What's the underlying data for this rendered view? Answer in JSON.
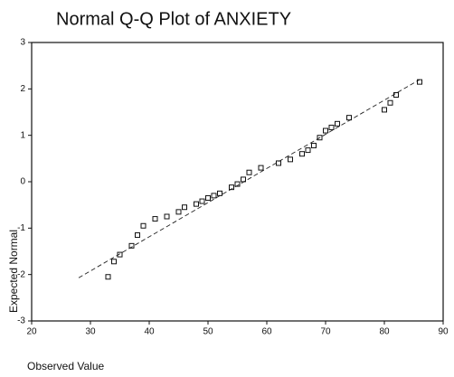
{
  "chart_data": {
    "type": "scatter",
    "title": "Normal Q-Q Plot of ANXIETY",
    "x_label": "Observed Value",
    "y_label": "Expected Normal",
    "x": [
      33,
      34,
      35,
      37,
      38,
      39,
      41,
      43,
      45,
      46,
      48,
      49,
      50,
      51,
      52,
      54,
      55,
      56,
      57,
      59,
      62,
      64,
      66,
      67,
      68,
      69,
      70,
      71,
      72,
      74,
      80,
      81,
      82,
      86
    ],
    "values": [
      -2.05,
      -1.72,
      -1.57,
      -1.38,
      -1.15,
      -0.95,
      -0.8,
      -0.75,
      -0.65,
      -0.55,
      -0.48,
      -0.42,
      -0.35,
      -0.3,
      -0.25,
      -0.12,
      -0.05,
      0.05,
      0.2,
      0.3,
      0.4,
      0.48,
      0.6,
      0.68,
      0.78,
      0.95,
      1.1,
      1.17,
      1.25,
      1.38,
      1.55,
      1.7,
      1.87,
      2.15
    ],
    "reference_line": {
      "x": [
        28,
        86
      ],
      "y": [
        -2.07,
        2.2
      ]
    },
    "color": "#111111",
    "xlim": [
      20,
      90
    ],
    "xticks": [
      20,
      30,
      40,
      50,
      60,
      70,
      80,
      90
    ],
    "ylim": [
      -3,
      3
    ],
    "yticks": [
      -3,
      -2,
      -1,
      0,
      1,
      2,
      3
    ]
  }
}
